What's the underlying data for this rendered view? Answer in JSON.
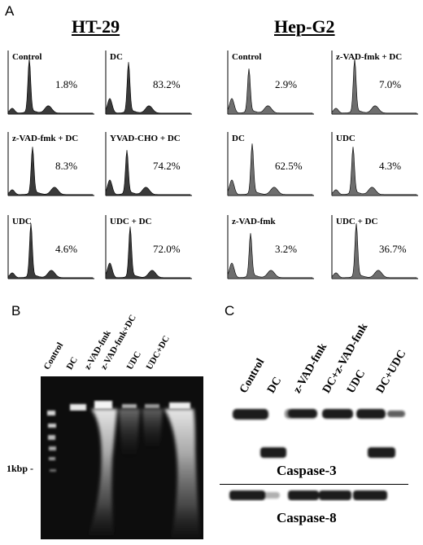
{
  "panel_a": {
    "letter": "A",
    "cells": [
      {
        "title": "HT-29",
        "histograms": [
          {
            "label": "Control",
            "percent": "1.8%"
          },
          {
            "label": "DC",
            "percent": "83.2%"
          },
          {
            "label": "z-VAD-fmk + DC",
            "percent": "8.3%"
          },
          {
            "label": "YVAD-CHO + DC",
            "percent": "74.2%"
          },
          {
            "label": "UDC",
            "percent": "4.6%"
          },
          {
            "label": "UDC + DC",
            "percent": "72.0%"
          }
        ]
      },
      {
        "title": "Hep-G2",
        "histograms": [
          {
            "label": "Control",
            "percent": "2.9%"
          },
          {
            "label": "z-VAD-fmk + DC",
            "percent": "7.0%"
          },
          {
            "label": "DC",
            "percent": "62.5%"
          },
          {
            "label": "UDC",
            "percent": "4.3%"
          },
          {
            "label": "z-VAD-fmk",
            "percent": "3.2%"
          },
          {
            "label": "UDC + DC",
            "percent": "36.7%"
          }
        ]
      }
    ]
  },
  "panel_b": {
    "letter": "B",
    "lanes": [
      "Control",
      "DC",
      "z-VAD-fmk",
      "z-VAD-fmk+DC",
      "UDC",
      "UDC+DC"
    ],
    "marker": "1kbp -"
  },
  "panel_c": {
    "letter": "C",
    "lanes": [
      "Control",
      "DC",
      "z-VAD-fmk",
      "DC+z-VAD-fmk",
      "UDC",
      "DC+UDC"
    ],
    "blot1": "Caspase-3",
    "blot2": "Caspase-8"
  },
  "colors": {
    "ht29_fill": "#3a3a3a",
    "hepg2_fill": "#6e6e6e",
    "gel_bg": "#0d0d0d",
    "band": "#1a1a1a"
  }
}
